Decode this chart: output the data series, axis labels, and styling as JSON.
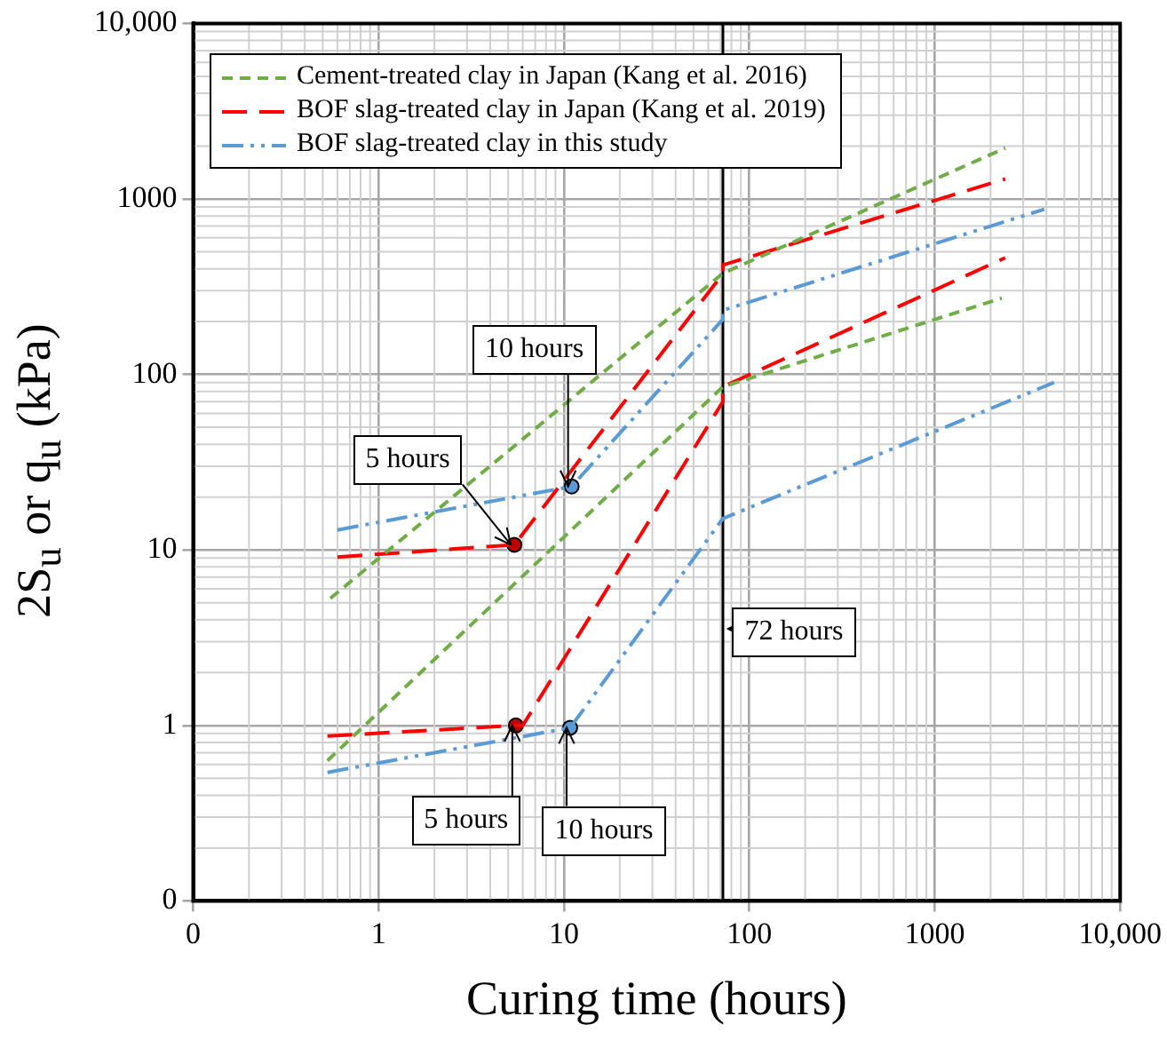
{
  "chart_data": {
    "type": "line",
    "xlabel": "Curing time (hours)",
    "ylabel": "2S$_{u}$ or q$_{u}$ (kPa)",
    "log": "xy",
    "grid": true,
    "legend": "top left",
    "xlim": [
      0.1,
      10000
    ],
    "ylim": [
      0.1,
      10000
    ],
    "xticks": [
      {
        "value": 0.1,
        "label": "0"
      },
      1,
      10,
      100,
      1000,
      {
        "value": 10000,
        "label": "10,000"
      }
    ],
    "yticks": [
      {
        "value": 0.1,
        "label": "0"
      },
      1,
      10,
      100,
      1000,
      {
        "value": 10000,
        "label": "10,000"
      }
    ],
    "series": [
      {
        "name": "Cement-treated clay in Japan (Kang et al. 2016)",
        "color": "#70ad47",
        "line_style": "dashed",
        "x": [
          0.55,
          72,
          2400
        ],
        "values": [
          5.3,
          377,
          1950
        ]
      },
      {
        "color": "#70ad47",
        "line_style": "dashed",
        "x": [
          0.53,
          72,
          2300
        ],
        "values": [
          0.63,
          85,
          272
        ]
      },
      {
        "name": "BOF slag-treated clay in Japan (Kang et al. 2019)",
        "color": "#ff0000",
        "line_style": "dashed",
        "x": [
          0.6,
          5.4,
          72,
          72,
          2400
        ],
        "values": [
          9.1,
          10.7,
          375,
          420,
          1300
        ]
      },
      {
        "color": "#ff0000",
        "line_style": "dashed",
        "x": [
          0.53,
          5.5,
          6,
          72,
          72,
          2400
        ],
        "values": [
          0.87,
          1.0,
          1.0,
          70,
          85,
          462
        ]
      },
      {
        "name": "BOF slag-treated clay in this study",
        "color": "#5b9bd5",
        "line_style": "dashed",
        "x": [
          0.6,
          11,
          72,
          72,
          3900
        ],
        "values": [
          13,
          23,
          206,
          232,
          874
        ]
      },
      {
        "color": "#5b9bd5",
        "line_style": "dashed",
        "x": [
          0.53,
          10.8,
          72,
          4400
        ],
        "values": [
          0.54,
          0.97,
          15.1,
          90
        ]
      },
      {
        "type": "scatter",
        "marker": "circle",
        "color": "#c00000",
        "x": [
          5.4,
          5.5
        ],
        "values": [
          10.7,
          1.0
        ]
      },
      {
        "type": "scatter",
        "marker": "circle",
        "color": "#5b9bd5",
        "x": [
          11,
          10.8
        ],
        "values": [
          23,
          0.97
        ]
      }
    ],
    "ref_lines": [
      {
        "axis": "x",
        "value": 72,
        "label": "72 hours",
        "color": "#000000"
      }
    ],
    "annotations": [
      {
        "text": "5 hours",
        "x": 5.4,
        "y": 10.7
      },
      {
        "text": "5 hours",
        "x": 5.5,
        "y": 1.0
      },
      {
        "text": "10 hours",
        "x": 11,
        "y": 23
      },
      {
        "text": "10 hours",
        "x": 10.8,
        "y": 0.97
      }
    ]
  }
}
